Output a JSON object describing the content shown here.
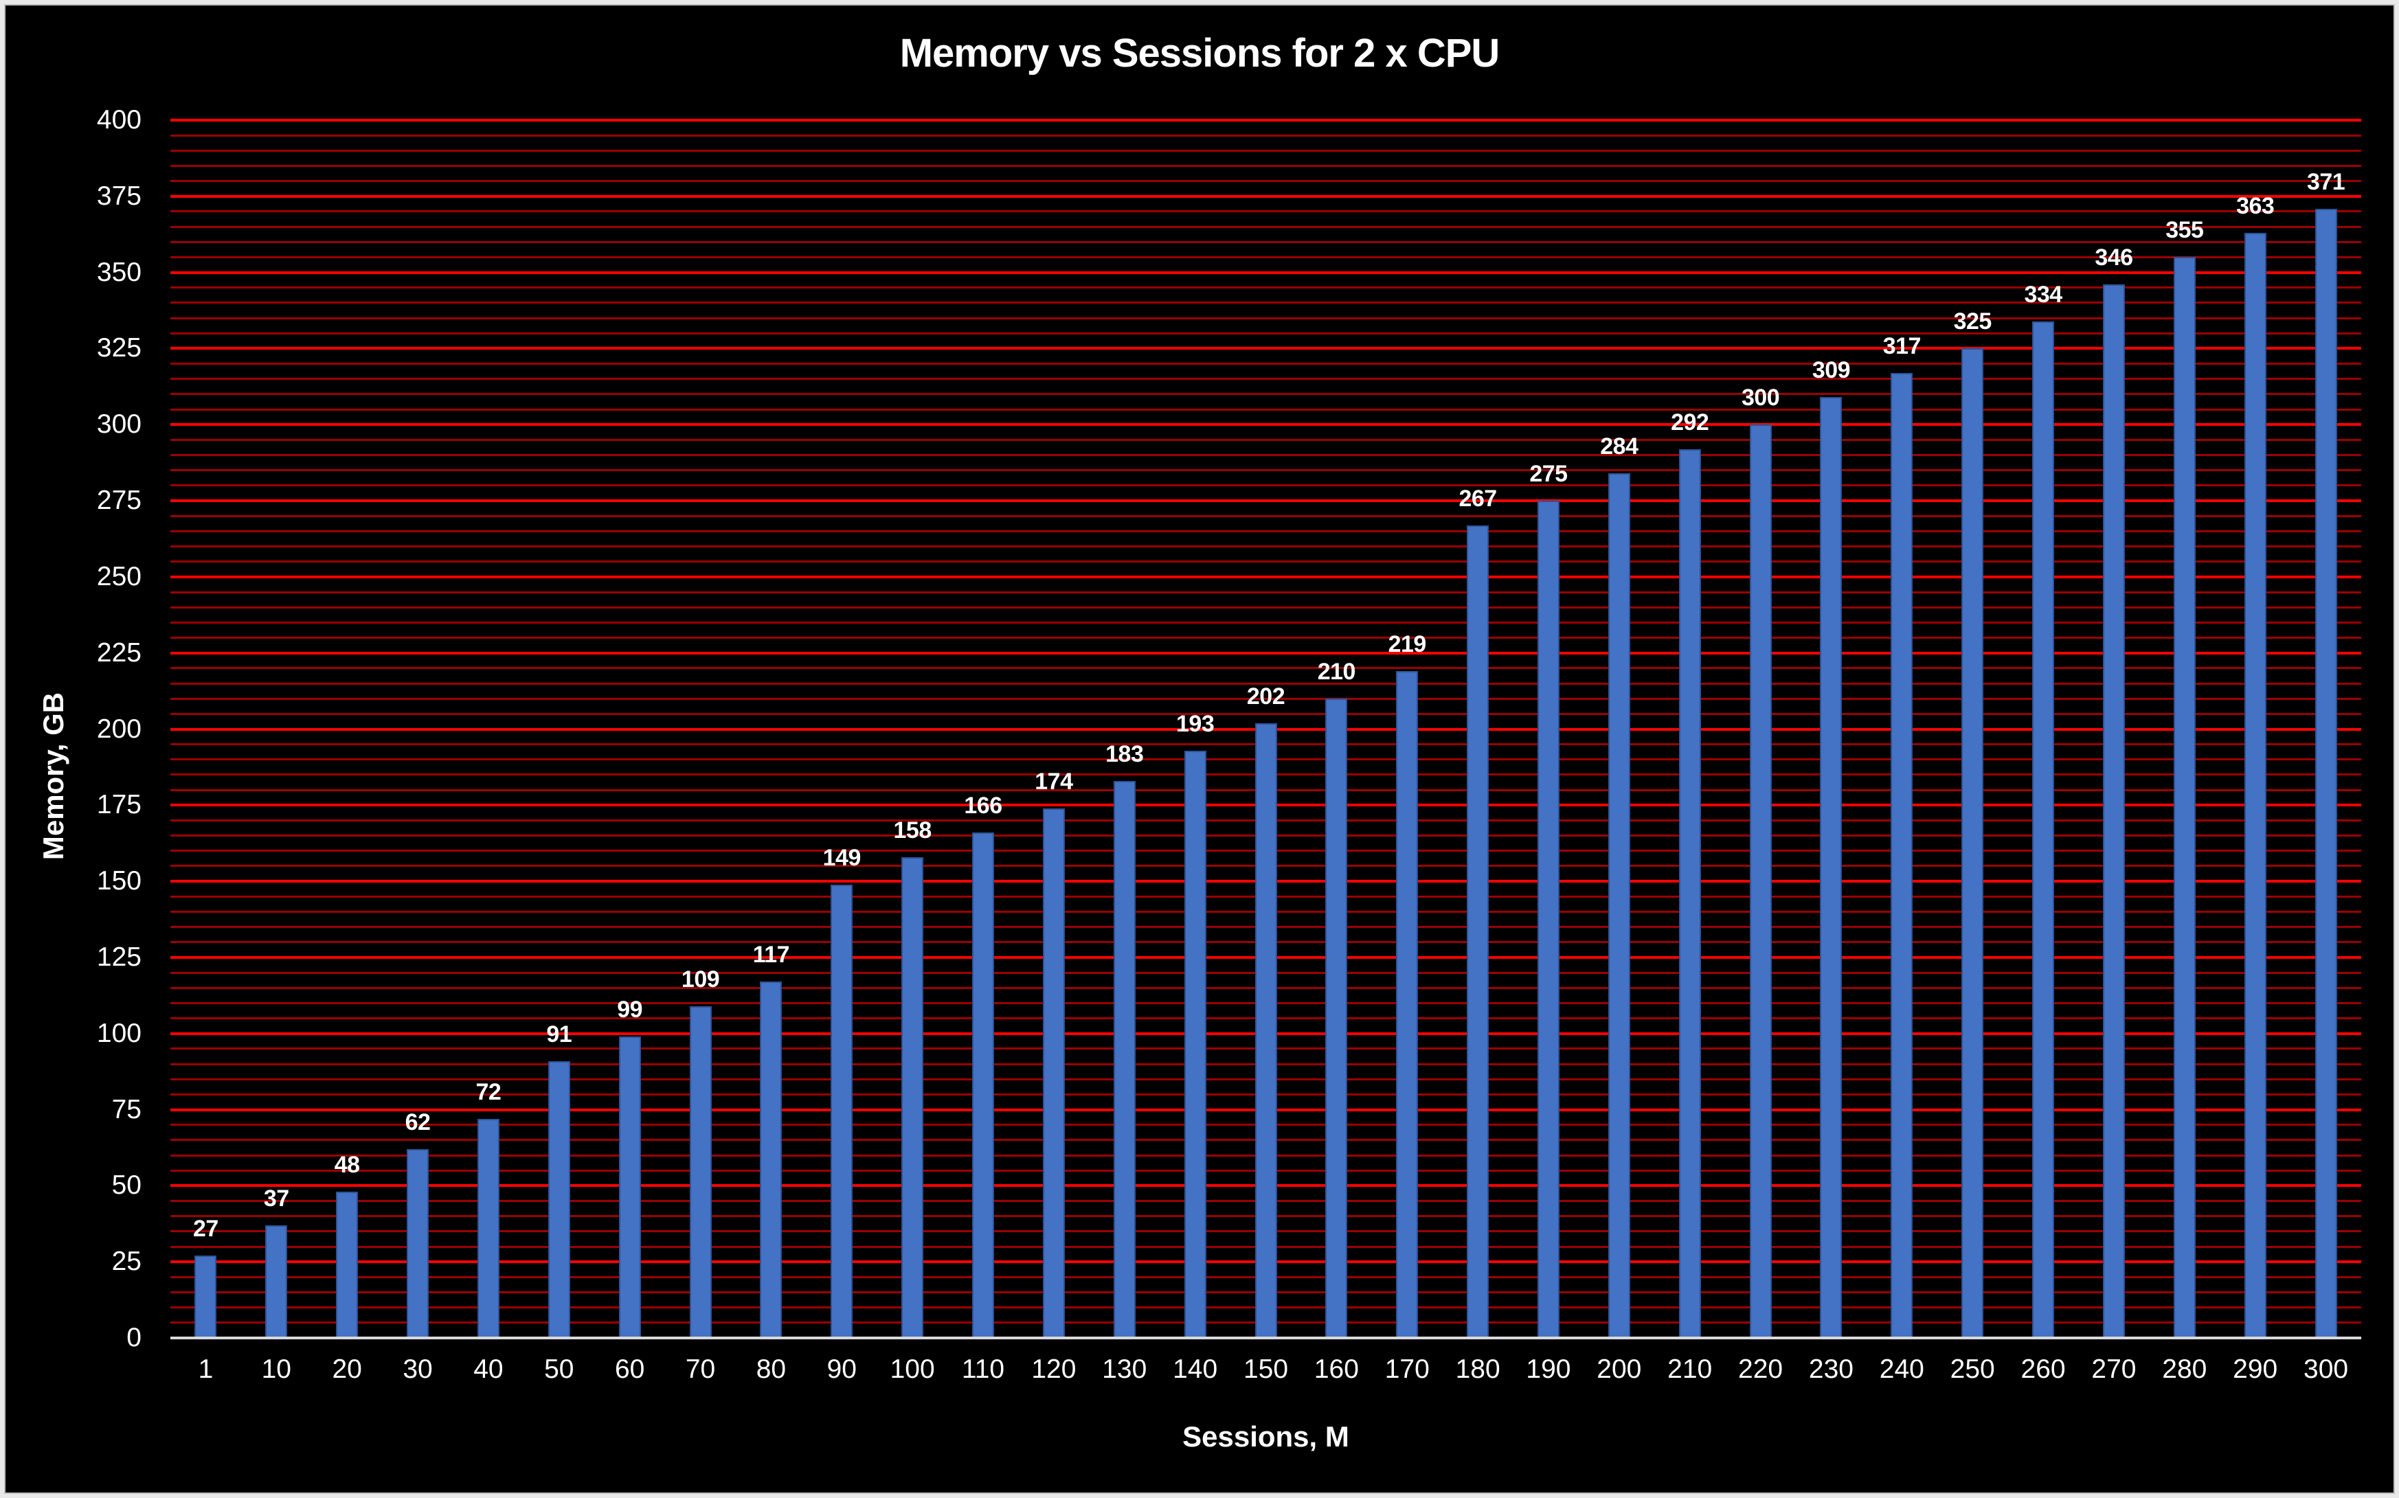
{
  "chart_data": {
    "type": "bar",
    "title": "Memory vs Sessions for 2 x CPU",
    "xlabel": "Sessions, M",
    "ylabel": "Memory, GB",
    "categories": [
      "1",
      "10",
      "20",
      "30",
      "40",
      "50",
      "60",
      "70",
      "80",
      "90",
      "100",
      "110",
      "120",
      "130",
      "140",
      "150",
      "160",
      "170",
      "180",
      "190",
      "200",
      "210",
      "220",
      "230",
      "240",
      "250",
      "260",
      "270",
      "280",
      "290",
      "300"
    ],
    "values": [
      27,
      37,
      48,
      62,
      72,
      91,
      99,
      109,
      117,
      149,
      158,
      166,
      174,
      183,
      193,
      202,
      210,
      219,
      267,
      275,
      284,
      292,
      300,
      309,
      317,
      325,
      334,
      346,
      355,
      363,
      371
    ],
    "ylim": [
      0,
      400
    ],
    "y_major_interval": 25,
    "y_minor_interval": 5,
    "grid": "on",
    "legend": "none",
    "data_labels": "outside-end",
    "colors": {
      "bar_fill": "#4472C4",
      "bar_border": "#2E5396",
      "grid_major": "#FE0000",
      "grid_minor": "#9C0000",
      "axis_baseline": "#D9D9D9",
      "text": "#FFFFFF",
      "background": "#000000"
    }
  }
}
